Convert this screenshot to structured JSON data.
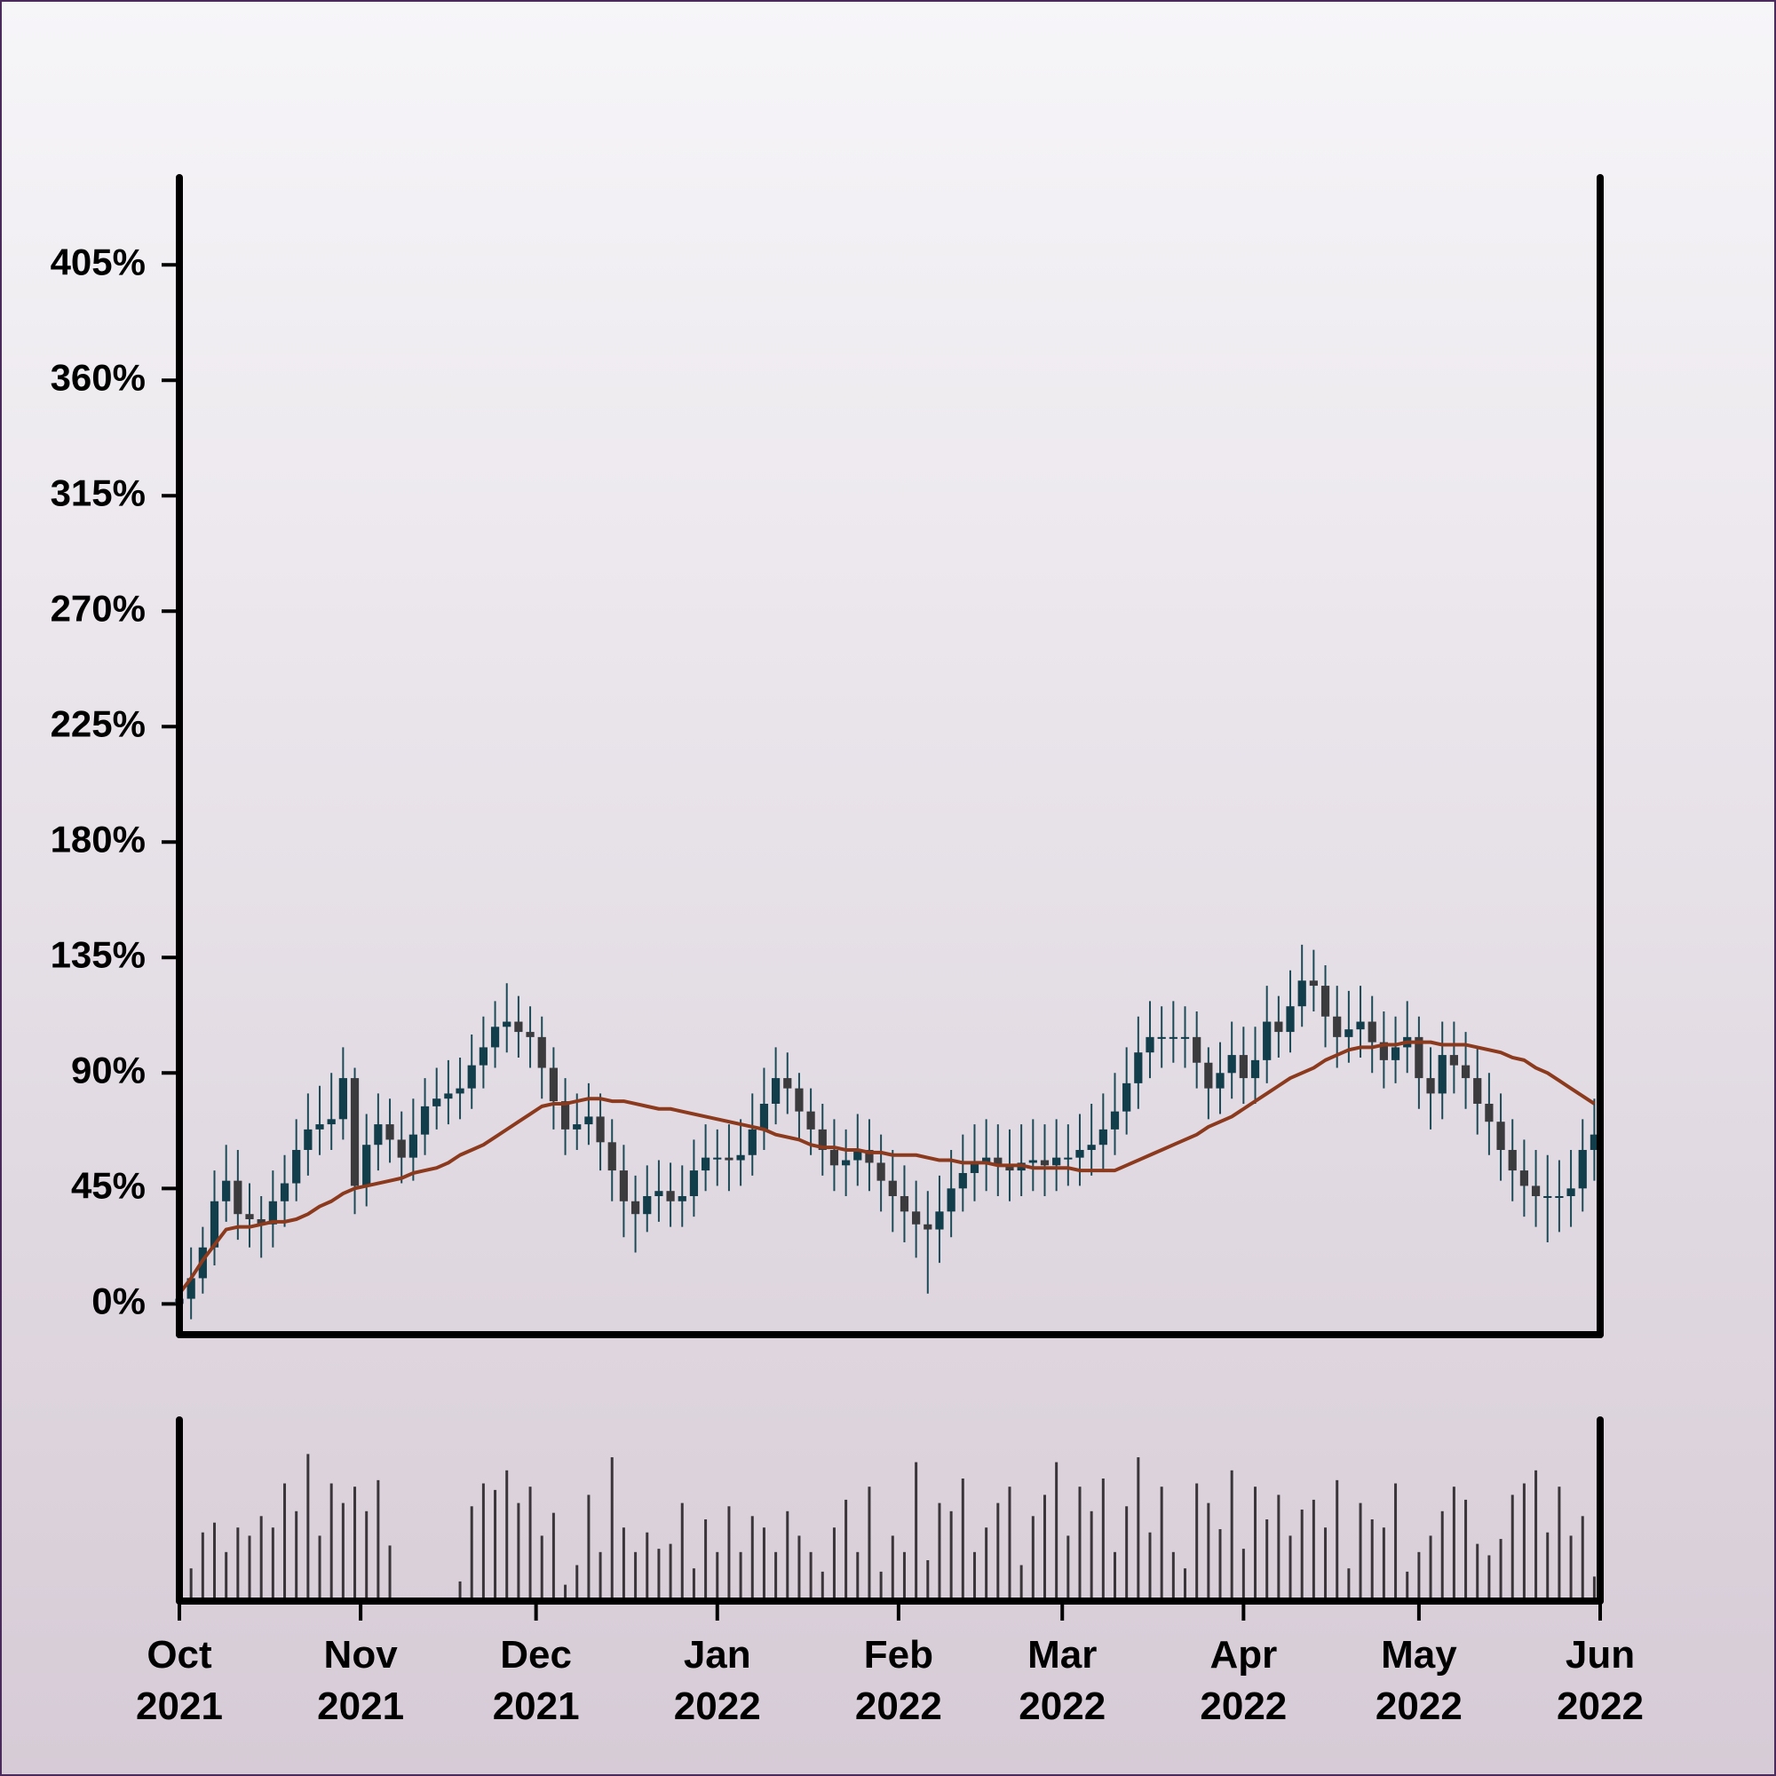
{
  "chart_data": {
    "type": "candlestick",
    "open": [
      0,
      2,
      10,
      22,
      40,
      48,
      35,
      33,
      31,
      40,
      47,
      60,
      68,
      70,
      72,
      88,
      46,
      62,
      70,
      64,
      57,
      66,
      77,
      80,
      82,
      84,
      93,
      100,
      108,
      110,
      106,
      104,
      92,
      79,
      68,
      70,
      73,
      63,
      52,
      40,
      35,
      42,
      44,
      40,
      42,
      52,
      57,
      57,
      56,
      58,
      68,
      78,
      88,
      84,
      75,
      68,
      60,
      54,
      56,
      60,
      55,
      48,
      42,
      36,
      31,
      29,
      36,
      45,
      51,
      55,
      57,
      54,
      52,
      55,
      56,
      54,
      57,
      57,
      60,
      62,
      68,
      75,
      86,
      98,
      104,
      104,
      104,
      104,
      94,
      84,
      90,
      97,
      88,
      95,
      110,
      106,
      116,
      126,
      124,
      112,
      104,
      107,
      110,
      102,
      95,
      100,
      104,
      88,
      82,
      97,
      93,
      88,
      78,
      71,
      60,
      52,
      46,
      42,
      42,
      42,
      45,
      60
    ],
    "high": [
      12,
      22,
      30,
      52,
      62,
      60,
      47,
      42,
      52,
      58,
      72,
      82,
      85,
      90,
      100,
      92,
      74,
      82,
      80,
      75,
      80,
      88,
      92,
      95,
      96,
      105,
      112,
      118,
      125,
      120,
      116,
      112,
      100,
      88,
      82,
      86,
      82,
      72,
      62,
      50,
      54,
      56,
      55,
      54,
      64,
      70,
      68,
      70,
      72,
      82,
      92,
      100,
      98,
      90,
      84,
      78,
      72,
      68,
      74,
      72,
      66,
      60,
      54,
      48,
      44,
      50,
      60,
      66,
      70,
      72,
      70,
      68,
      70,
      72,
      70,
      72,
      70,
      74,
      78,
      82,
      90,
      100,
      112,
      118,
      116,
      118,
      116,
      114,
      100,
      102,
      110,
      108,
      108,
      124,
      120,
      130,
      140,
      138,
      132,
      124,
      122,
      124,
      120,
      114,
      112,
      118,
      112,
      100,
      110,
      110,
      106,
      100,
      90,
      82,
      72,
      64,
      60,
      58,
      56,
      60,
      72,
      80
    ],
    "low": [
      -8,
      -6,
      4,
      15,
      32,
      25,
      22,
      18,
      22,
      30,
      40,
      50,
      58,
      60,
      64,
      35,
      38,
      52,
      55,
      47,
      48,
      58,
      68,
      70,
      72,
      76,
      84,
      92,
      98,
      96,
      92,
      80,
      68,
      58,
      60,
      62,
      52,
      40,
      26,
      20,
      28,
      32,
      30,
      30,
      34,
      44,
      46,
      44,
      46,
      50,
      60,
      70,
      74,
      64,
      58,
      50,
      44,
      42,
      46,
      44,
      36,
      28,
      24,
      18,
      4,
      16,
      26,
      36,
      40,
      44,
      42,
      40,
      42,
      44,
      42,
      44,
      46,
      46,
      50,
      52,
      58,
      66,
      76,
      88,
      92,
      94,
      92,
      84,
      72,
      74,
      80,
      78,
      78,
      86,
      96,
      98,
      108,
      114,
      100,
      92,
      94,
      96,
      90,
      84,
      86,
      90,
      76,
      68,
      72,
      82,
      76,
      66,
      58,
      48,
      40,
      34,
      30,
      24,
      28,
      30,
      36,
      48
    ],
    "close": [
      2,
      10,
      22,
      40,
      48,
      35,
      33,
      31,
      40,
      47,
      60,
      68,
      70,
      72,
      88,
      46,
      62,
      70,
      64,
      57,
      66,
      77,
      80,
      82,
      84,
      93,
      100,
      108,
      110,
      106,
      104,
      92,
      79,
      68,
      70,
      73,
      63,
      52,
      40,
      35,
      42,
      44,
      40,
      42,
      52,
      57,
      57,
      56,
      58,
      68,
      78,
      88,
      84,
      75,
      68,
      60,
      54,
      56,
      60,
      55,
      48,
      42,
      36,
      31,
      29,
      36,
      45,
      51,
      55,
      57,
      54,
      52,
      55,
      56,
      54,
      57,
      57,
      60,
      62,
      68,
      75,
      86,
      98,
      104,
      104,
      104,
      104,
      94,
      84,
      90,
      97,
      88,
      95,
      110,
      106,
      116,
      126,
      124,
      112,
      104,
      107,
      110,
      102,
      95,
      100,
      104,
      88,
      82,
      97,
      93,
      88,
      78,
      71,
      60,
      52,
      46,
      42,
      42,
      42,
      45,
      60,
      66
    ],
    "moving_average": [
      4,
      10,
      17,
      23,
      29,
      30,
      30,
      31,
      32,
      32,
      33,
      35,
      38,
      40,
      43,
      45,
      46,
      47,
      48,
      49,
      51,
      52,
      53,
      55,
      58,
      60,
      62,
      65,
      68,
      71,
      74,
      77,
      78,
      78,
      79,
      80,
      80,
      79,
      79,
      78,
      77,
      76,
      76,
      75,
      74,
      73,
      72,
      71,
      70,
      69,
      68,
      66,
      65,
      64,
      62,
      61,
      61,
      60,
      60,
      59,
      59,
      58,
      58,
      58,
      57,
      56,
      56,
      55,
      55,
      55,
      54,
      54,
      54,
      53,
      53,
      53,
      53,
      52,
      52,
      52,
      52,
      54,
      56,
      58,
      60,
      62,
      64,
      66,
      69,
      71,
      73,
      76,
      79,
      82,
      85,
      88,
      90,
      92,
      95,
      97,
      99,
      100,
      100,
      101,
      101,
      102,
      102,
      102,
      101,
      101,
      101,
      100,
      99,
      98,
      96,
      95,
      92,
      90,
      87,
      84,
      81,
      78
    ],
    "volume": [
      92,
      20,
      42,
      48,
      30,
      45,
      40,
      52,
      45,
      72,
      55,
      90,
      40,
      72,
      60,
      70,
      55,
      74,
      34,
      2,
      0,
      0,
      1,
      2,
      12,
      58,
      72,
      68,
      80,
      60,
      70,
      40,
      54,
      10,
      22,
      65,
      30,
      88,
      45,
      30,
      42,
      32,
      35,
      60,
      20,
      50,
      30,
      58,
      30,
      52,
      45,
      30,
      55,
      40,
      30,
      18,
      45,
      62,
      30,
      70,
      18,
      40,
      30,
      85,
      25,
      60,
      55,
      75,
      30,
      45,
      60,
      70,
      22,
      52,
      65,
      85,
      40,
      70,
      55,
      75,
      30,
      58,
      88,
      42,
      70,
      30,
      20,
      72,
      60,
      44,
      80,
      32,
      70,
      50,
      65,
      40,
      56,
      62,
      45,
      74,
      20,
      60,
      50,
      45,
      72,
      18,
      30,
      40,
      55,
      70,
      62,
      35,
      28,
      38,
      65,
      72,
      80,
      42,
      70,
      40,
      52,
      15
    ],
    "up_color": "#123d4a",
    "down_color": "#3b3a3d",
    "wick_color": "#1d4a57",
    "ma_color": "#8b3a1e",
    "volume_color": "#3a3538",
    "xlim": [
      0,
      121.5
    ],
    "xticks": [
      {
        "value": 0,
        "label": "Oct 2021"
      },
      {
        "value": 15.5,
        "label": "Nov 2021"
      },
      {
        "value": 30.5,
        "label": "Dec 2021"
      },
      {
        "value": 46,
        "label": "Jan 2022"
      },
      {
        "value": 61.5,
        "label": "Feb 2022"
      },
      {
        "value": 75.5,
        "label": "Mar 2022"
      },
      {
        "value": 91,
        "label": "Apr 2022"
      },
      {
        "value": 106,
        "label": "May 2022"
      },
      {
        "value": 121.5,
        "label": "Jun 2022"
      }
    ],
    "ylim": [
      -12,
      439
    ],
    "yticks": [
      {
        "value": 0,
        "label": "0%"
      },
      {
        "value": 45,
        "label": "45%"
      },
      {
        "value": 90,
        "label": "90%"
      },
      {
        "value": 135,
        "label": "135%"
      },
      {
        "value": 180,
        "label": "180%"
      },
      {
        "value": 225,
        "label": "225%"
      },
      {
        "value": 270,
        "label": "270%"
      },
      {
        "value": 315,
        "label": "315%"
      },
      {
        "value": 360,
        "label": "360%"
      },
      {
        "value": 405,
        "label": "405%"
      }
    ],
    "volume_ylim": [
      0,
      100
    ]
  }
}
